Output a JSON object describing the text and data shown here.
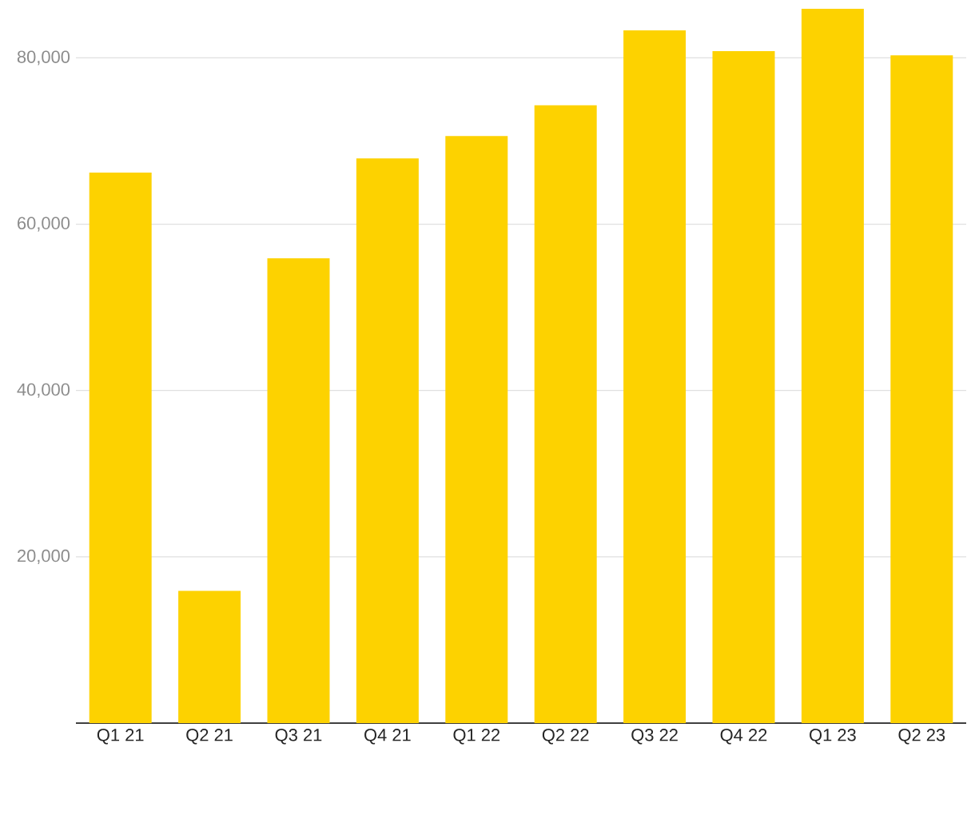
{
  "chart_data": {
    "type": "bar",
    "categories": [
      "Q1 21",
      "Q2 21",
      "Q3 21",
      "Q4 21",
      "Q1 22",
      "Q2 22",
      "Q3 22",
      "Q4 22",
      "Q1 23",
      "Q2 23"
    ],
    "values": [
      66200,
      15900,
      55900,
      67900,
      70600,
      74300,
      83300,
      80800,
      85900,
      80300
    ],
    "color": "#fdd200",
    "ylim": [
      0,
      86000
    ],
    "yticks": [
      {
        "value": 20000,
        "label": "20,000"
      },
      {
        "value": 40000,
        "label": "40,000"
      },
      {
        "value": 60000,
        "label": "60,000"
      },
      {
        "value": 80000,
        "label": "80,000"
      }
    ],
    "grid": "y"
  }
}
